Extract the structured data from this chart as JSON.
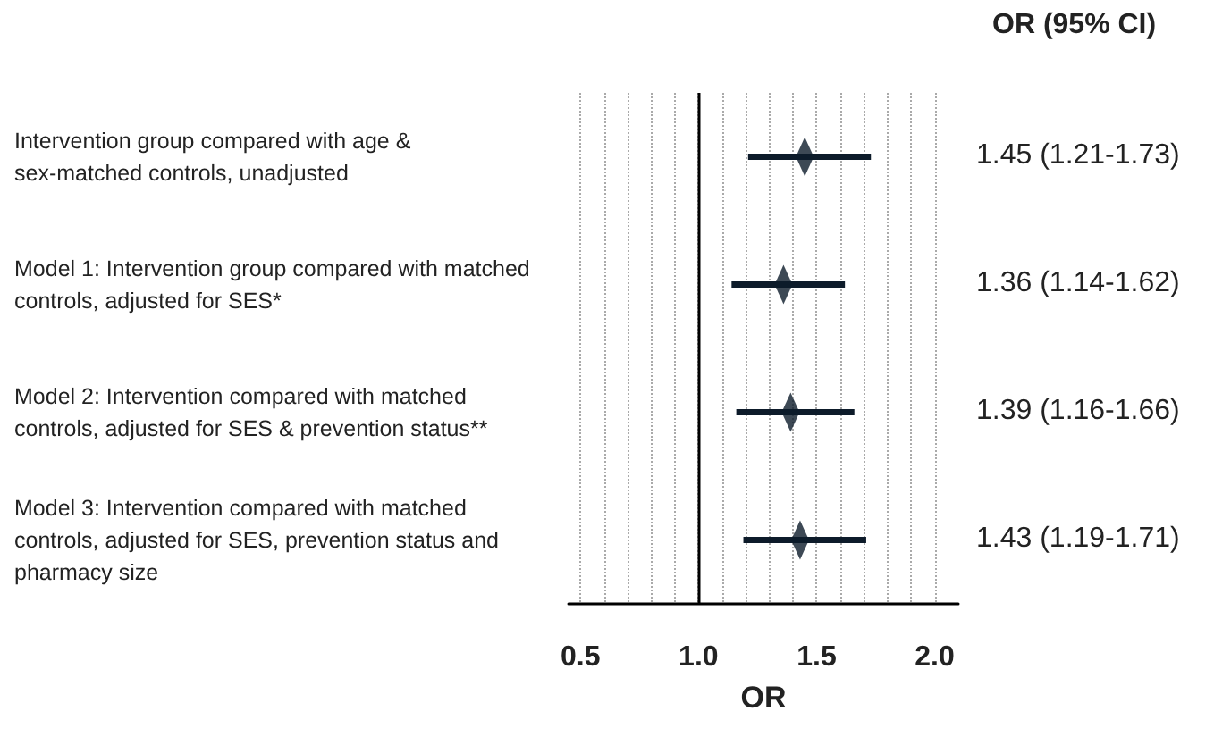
{
  "chart_data": {
    "type": "scatter",
    "orientation": "horizontal",
    "categories": [
      "Intervention group compared with age & sex-matched controls, unadjusted",
      "Model 1: Intervention group compared with matched controls, adjusted for SES*",
      "Model 2: Intervention compared with matched controls, adjusted for SES & prevention status**",
      "Model 3: Intervention compared with matched controls, adjusted for SES, prevention status and pharmacy size"
    ],
    "values": [
      1.45,
      1.36,
      1.39,
      1.43
    ],
    "errors": [
      [
        1.21,
        1.73
      ],
      [
        1.14,
        1.62
      ],
      [
        1.16,
        1.66
      ],
      [
        1.19,
        1.71
      ]
    ],
    "value_labels": [
      "1.45 (1.21-1.73)",
      "1.36 (1.14-1.62)",
      "1.39 (1.16-1.66)",
      "1.43 (1.19-1.71)"
    ],
    "color": "#0d1b2a",
    "marker": "diamond",
    "xlabel": "OR",
    "xlim": [
      0.45,
      2.1
    ],
    "xticks": [
      {
        "value": 0.5,
        "label": "0.5"
      },
      {
        "value": 0.6,
        "label": null
      },
      {
        "value": 0.7,
        "label": null
      },
      {
        "value": 0.8,
        "label": null
      },
      {
        "value": 0.9,
        "label": null
      },
      {
        "value": 1.0,
        "label": "1.0"
      },
      {
        "value": 1.1,
        "label": null
      },
      {
        "value": 1.2,
        "label": null
      },
      {
        "value": 1.3,
        "label": null
      },
      {
        "value": 1.4,
        "label": null
      },
      {
        "value": 1.5,
        "label": "1.5"
      },
      {
        "value": 1.6,
        "label": null
      },
      {
        "value": 1.7,
        "label": null
      },
      {
        "value": 1.8,
        "label": null
      },
      {
        "value": 1.9,
        "label": null
      },
      {
        "value": 2.0,
        "label": "2.0"
      }
    ],
    "grid": "x",
    "ref_lines": [
      {
        "axis": "x",
        "value": 1.0,
        "color": "#000000"
      }
    ],
    "annotations": [
      "OR (95% CI)"
    ]
  }
}
